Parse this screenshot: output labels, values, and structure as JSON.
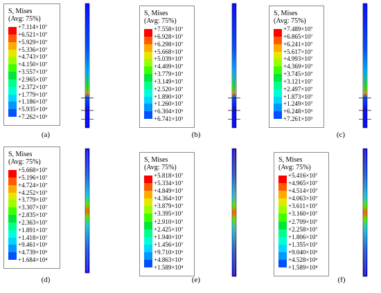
{
  "colors": [
    "#ff0000",
    "#ff5a00",
    "#ffaa00",
    "#e6e600",
    "#99ff00",
    "#3cff00",
    "#00e63c",
    "#00ff8c",
    "#00ffd9",
    "#00d4ff",
    "#0096ff",
    "#0050ff",
    "#0000ff"
  ],
  "panels": [
    {
      "caption": "(a)",
      "title": "S, Mises",
      "avg": "(Avg: 75%)",
      "levels": [
        "+7.114×10⁷",
        "+6.521×10⁷",
        "+5.929×10⁷",
        "+5.336×10⁷",
        "+4.743×10⁷",
        "+4.150×10⁷",
        "+3.557×10⁷",
        "+2.965×10⁷",
        "+2.372×10⁷",
        "+1.779×10⁷",
        "+1.186×10⁷",
        "+5.935×10⁶",
        "+7.262×10³"
      ],
      "hotspot": "mid"
    },
    {
      "caption": "(b)",
      "title": "S, Mises",
      "avg": "(Avg: 75%)",
      "levels": [
        "+7.558×10⁷",
        "+6.928×10⁷",
        "+6.298×10⁷",
        "+5.668×10⁷",
        "+5.039×10⁷",
        "+4.409×10⁷",
        "+3.779×10⁷",
        "+3.149×10⁷",
        "+2.520×10⁷",
        "+1.890×10⁷",
        "+1.260×10⁷",
        "+6.304×10⁶",
        "+6.741×10³"
      ],
      "hotspot": "mid"
    },
    {
      "caption": "(c)",
      "title": "S, Mises",
      "avg": "(Avg: 75%)",
      "levels": [
        "+7.489×10⁷",
        "+6.865×10⁷",
        "+6.241×10⁷",
        "+5.617×10⁷",
        "+4.993×10⁷",
        "+4.369×10⁷",
        "+3.745×10⁷",
        "+3.121×10⁷",
        "+2.497×10⁷",
        "+1.873×10⁷",
        "+1.249×10⁷",
        "+6.248×10⁶",
        "+7.261×10³"
      ],
      "hotspot": "mid"
    },
    {
      "caption": "(d)",
      "title": "S, Mises",
      "avg": "(Avg: 75%)",
      "levels": [
        "+5.668×10⁷",
        "+5.196×10⁷",
        "+4.724×10⁷",
        "+4.252×10⁷",
        "+3.779×10⁷",
        "+3.307×10⁷",
        "+2.835×10⁷",
        "+2.363×10⁷",
        "+1.891×10⁷",
        "+1.418×10⁷",
        "+9.461×10⁶",
        "+4.739×10⁶",
        "+1.684×10⁴"
      ],
      "hotspot": "center"
    },
    {
      "caption": "(e)",
      "title": "S, Mises",
      "avg": "(Avg: 75%)",
      "levels": [
        "+5.818×10⁷",
        "+5.334×10⁷",
        "+4.849×10⁷",
        "+4.364×10⁷",
        "+3.879×10⁷",
        "+3.395×10⁷",
        "+2.910×10⁷",
        "+2.425×10⁷",
        "+1.940×10⁷",
        "+1.456×10⁷",
        "+9.710×10⁶",
        "+4.863×10⁶",
        "+1.589×10⁴"
      ],
      "hotspot": "center"
    },
    {
      "caption": "(f)",
      "title": "S, Mises",
      "avg": "(Avg: 75%)",
      "levels": [
        "+5.416×10⁷",
        "+4.965×10⁷",
        "+4.514×10⁷",
        "+4.063×10⁷",
        "+3.611×10⁷",
        "+3.160×10⁷",
        "+2.709×10⁷",
        "+2.258×10⁷",
        "+1.806×10⁷",
        "+1.355×10⁷",
        "+9.040×10⁶",
        "+4.528×10⁶",
        "+1.589×10⁴"
      ],
      "hotspot": "center"
    }
  ]
}
